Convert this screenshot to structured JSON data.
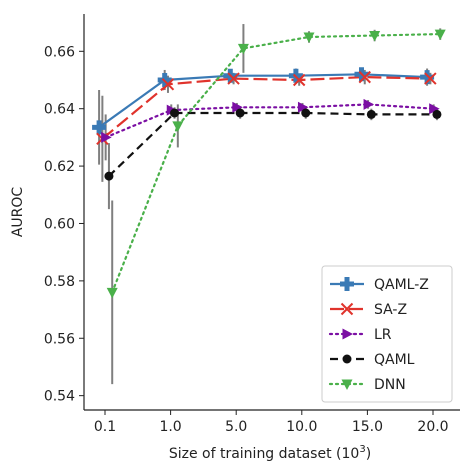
{
  "chart_data": {
    "type": "line",
    "xlabel": "Size of training dataset (10",
    "xlabel_sup": "3",
    "xlabel_close": ")",
    "ylabel": "AUROC",
    "categories": [
      "0.1",
      "1.0",
      "5.0",
      "10.0",
      "15.0",
      "20.0"
    ],
    "y_ticks": [
      "0.54",
      "0.56",
      "0.58",
      "0.60",
      "0.62",
      "0.64",
      "0.66"
    ],
    "ylim": [
      0.535,
      0.673
    ],
    "grid": false,
    "legend_position": "lower-right",
    "series": [
      {
        "name": "QAML-Z",
        "color": "#3a7ab5",
        "dash": "solid",
        "marker": "plus-filled",
        "offset": -0.09,
        "values": [
          0.6335,
          0.65,
          0.6515,
          0.6515,
          0.652,
          0.651
        ],
        "err": [
          0.013,
          0.0035,
          0.0015,
          0.0025,
          0.002,
          0.003
        ]
      },
      {
        "name": "SA-Z",
        "color": "#e0332c",
        "dash": "long",
        "marker": "x",
        "offset": -0.04,
        "values": [
          0.6295,
          0.6485,
          0.6505,
          0.65,
          0.651,
          0.6505
        ],
        "err": [
          0.015,
          0.003,
          0.002,
          0.002,
          0.0025,
          0.002
        ]
      },
      {
        "name": "LR",
        "color": "#7b0fa3",
        "dash": "dotted",
        "marker": "triangle-right",
        "offset": 0.01,
        "values": [
          0.63,
          0.6395,
          0.6405,
          0.6405,
          0.6415,
          0.64
        ],
        "err": [
          0.008,
          0.002,
          0.0015,
          0.0015,
          0.0015,
          0.0015
        ]
      },
      {
        "name": "QAML",
        "color": "#111111",
        "dash": "dashed",
        "marker": "circle",
        "offset": 0.06,
        "values": [
          0.6165,
          0.6385,
          0.6385,
          0.6385,
          0.638,
          0.638
        ],
        "err": [
          0.0115,
          0.002,
          0.002,
          0.002,
          0.002,
          0.002
        ]
      },
      {
        "name": "DNN",
        "color": "#4ab04a",
        "dash": "dotted",
        "marker": "triangle-down",
        "offset": 0.11,
        "values": [
          0.576,
          0.634,
          0.661,
          0.665,
          0.6655,
          0.666
        ],
        "err": [
          0.032,
          0.0075,
          0.0085,
          0.002,
          0.002,
          0.002
        ]
      }
    ]
  }
}
